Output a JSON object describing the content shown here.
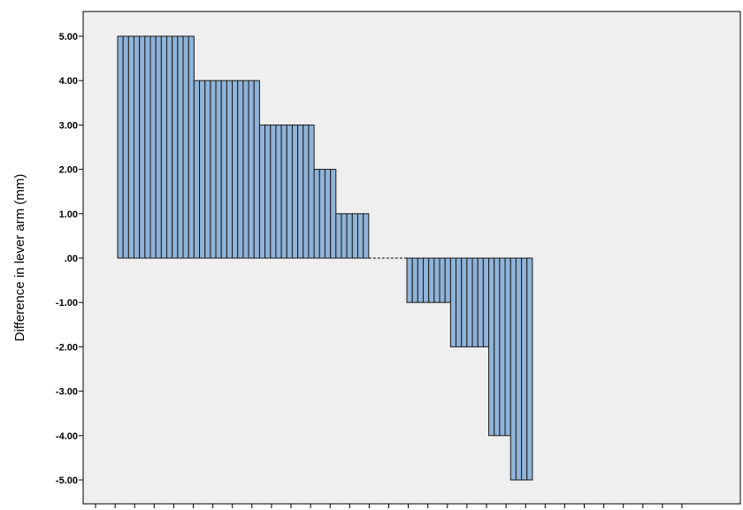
{
  "chart_data": {
    "type": "bar",
    "title": "",
    "xlabel": "",
    "ylabel": "Difference in lever arm (mm)",
    "ylim": [
      -5.6,
      5.6
    ],
    "yticks": [
      5,
      4,
      3,
      2,
      1,
      0,
      -1,
      -2,
      -3,
      -4,
      -5
    ],
    "ytick_labels": [
      "5.00",
      "4.00",
      "3.00",
      "2.00",
      "1.00",
      ".00",
      "-1.00",
      "-2.00",
      "-3.00",
      "-4.00",
      "-5.00"
    ],
    "x_tick_count": 31,
    "grid": false,
    "legend": "none",
    "colors": {
      "plot_background": "#efefef",
      "bar_fill": "#8fb3d9",
      "bar_stroke": "#1a1a1a"
    },
    "values": [
      5,
      5,
      5,
      5,
      5,
      5,
      5,
      5,
      5,
      5,
      5,
      5,
      5,
      5,
      4,
      4,
      4,
      4,
      4,
      4,
      4,
      4,
      4,
      4,
      4,
      4,
      3,
      3,
      3,
      3,
      3,
      3,
      3,
      3,
      3,
      3,
      2,
      2,
      2,
      2,
      1,
      1,
      1,
      1,
      1,
      1,
      0,
      0,
      0,
      0,
      0,
      0,
      0,
      -1,
      -1,
      -1,
      -1,
      -1,
      -1,
      -1,
      -1,
      -2,
      -2,
      -2,
      -2,
      -2,
      -2,
      -2,
      -4,
      -4,
      -4,
      -4,
      -5,
      -5,
      -5,
      -5
    ]
  }
}
